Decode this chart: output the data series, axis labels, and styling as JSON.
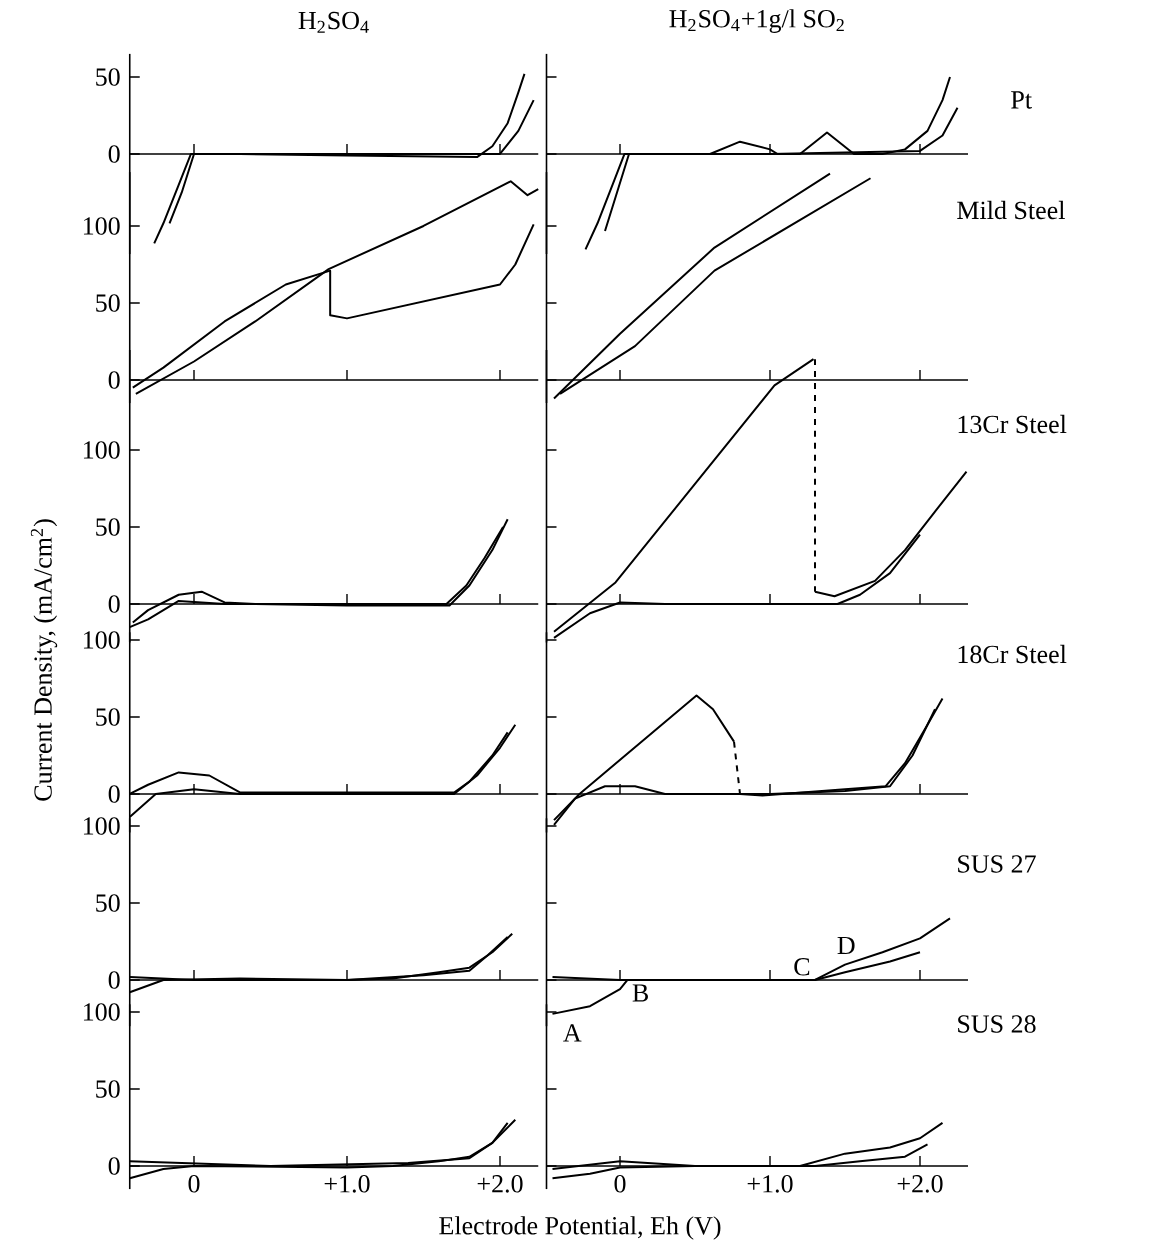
{
  "chart_data": [
    {
      "type": "line",
      "title": "H$_{2}$SO$_{4}$",
      "xlim": [
        -0.42,
        2.25
      ],
      "ylim": [
        -65,
        65
      ],
      "xticks": [
        {
          "value": 0,
          "label": null
        },
        {
          "value": 1,
          "label": null
        },
        {
          "value": 2,
          "label": null
        }
      ],
      "yticks": [
        0,
        50
      ],
      "tick_labels": "y",
      "series": [
        {
          "color": "#000000",
          "x": [
            -0.26,
            -0.2,
            -0.1,
            -0.02,
            0.3,
            1.0,
            1.85,
            1.95,
            2.05,
            2.12,
            2.16
          ],
          "values": [
            -58,
            -45,
            -20,
            0,
            0,
            -1,
            -2,
            5,
            20,
            40,
            52
          ]
        },
        {
          "color": "#000000",
          "x": [
            2.22,
            2.12,
            2.0,
            1.0,
            0.0,
            -0.08,
            -0.16
          ],
          "values": [
            35,
            15,
            0,
            0,
            0,
            -25,
            -45
          ]
        }
      ]
    },
    {
      "type": "line",
      "title": "H$_{2}$SO$_{4}$+1g/l SO$_{2}$",
      "xlim": [
        -0.49,
        2.32
      ],
      "ylim": [
        -65,
        65
      ],
      "xticks": [
        {
          "value": 0,
          "label": null
        },
        {
          "value": 1,
          "label": null
        },
        {
          "value": 2,
          "label": null
        }
      ],
      "yticks": [
        0,
        50
      ],
      "tick_labels": false,
      "annotations": [
        "Pt"
      ],
      "series": [
        {
          "color": "#000000",
          "x": [
            -0.23,
            -0.15,
            -0.05,
            0.03,
            0.6,
            0.8,
            1.0,
            1.05,
            1.2,
            1.38,
            1.56,
            1.75,
            1.9,
            2.05,
            2.15,
            2.2
          ],
          "values": [
            -62,
            -45,
            -20,
            0,
            0,
            8,
            3,
            0,
            0,
            14,
            0,
            0,
            3,
            15,
            35,
            50
          ]
        },
        {
          "color": "#000000",
          "x": [
            2.25,
            2.15,
            2.0,
            1.0,
            0.06,
            -0.02,
            -0.1
          ],
          "values": [
            30,
            12,
            2,
            0,
            0,
            -25,
            -50
          ]
        }
      ]
    },
    {
      "type": "line",
      "xlim": [
        -0.42,
        2.25
      ],
      "ylim": [
        -15,
        135
      ],
      "xticks": [
        {
          "value": 0,
          "label": null
        },
        {
          "value": 1,
          "label": null
        },
        {
          "value": 2,
          "label": null
        }
      ],
      "yticks": [
        0,
        50,
        100
      ],
      "tick_labels": "y",
      "series": [
        {
          "color": "#000000",
          "x": [
            -0.38,
            0.0,
            0.4,
            0.88,
            1.5,
            2.07,
            2.18,
            2.25
          ],
          "values": [
            -9,
            12,
            38,
            72,
            100,
            129,
            120,
            124
          ]
        },
        {
          "color": "#000000",
          "x": [
            2.22,
            2.1,
            2.0,
            1.5,
            1.0,
            0.89,
            0.89,
            0.6,
            0.2,
            -0.2,
            -0.4
          ],
          "values": [
            101,
            75,
            62,
            51,
            40,
            42,
            71,
            62,
            38,
            8,
            -5
          ]
        }
      ]
    },
    {
      "type": "line",
      "xlim": [
        -0.49,
        2.32
      ],
      "ylim": [
        -15,
        135
      ],
      "xticks": [
        {
          "value": 0,
          "label": null
        },
        {
          "value": 1,
          "label": null
        },
        {
          "value": 2,
          "label": null
        }
      ],
      "yticks": [
        0,
        50,
        100
      ],
      "tick_labels": false,
      "annotations": [
        "Mild Steel"
      ],
      "series": [
        {
          "color": "#000000",
          "x": [
            -0.4,
            0.1,
            0.63,
            1.67
          ],
          "values": [
            -9,
            22,
            71,
            131
          ]
        },
        {
          "color": "#000000",
          "x": [
            1.4,
            0.63,
            0.0,
            -0.44
          ],
          "values": [
            134,
            86,
            30,
            -12
          ]
        }
      ]
    },
    {
      "type": "line",
      "xlim": [
        -0.42,
        2.25
      ],
      "ylim": [
        -25,
        165
      ],
      "xticks": [
        {
          "value": 0,
          "label": null
        },
        {
          "value": 1,
          "label": null
        },
        {
          "value": 2,
          "label": null
        }
      ],
      "yticks": [
        0,
        50,
        100
      ],
      "tick_labels": "y",
      "series": [
        {
          "color": "#000000",
          "x": [
            -0.4,
            -0.3,
            -0.1,
            0.05,
            0.2,
            0.4,
            1.0,
            1.67,
            1.8,
            1.95,
            2.05
          ],
          "values": [
            -12,
            -4,
            6,
            8,
            1,
            0,
            -1,
            -1,
            12,
            35,
            55
          ]
        },
        {
          "color": "#000000",
          "x": [
            2.02,
            1.9,
            1.78,
            1.65,
            1.0,
            0.2,
            -0.1,
            -0.3,
            -0.42
          ],
          "values": [
            50,
            30,
            12,
            0,
            0,
            0,
            2,
            -10,
            -15
          ]
        }
      ]
    },
    {
      "type": "line",
      "xlim": [
        -0.49,
        2.32
      ],
      "ylim": [
        -25,
        165
      ],
      "xticks": [
        {
          "value": 0,
          "label": null
        },
        {
          "value": 1,
          "label": null
        },
        {
          "value": 2,
          "label": null
        }
      ],
      "yticks": [
        0,
        50,
        100
      ],
      "tick_labels": false,
      "annotations": [
        "13Cr Steel"
      ],
      "series": [
        {
          "color": "#000000",
          "x": [
            -0.44,
            -0.03,
            1.03,
            1.29
          ],
          "values": [
            -18,
            14,
            142,
            159
          ]
        },
        {
          "color": "#000000",
          "line_style": "dashed",
          "x": [
            1.3,
            1.3
          ],
          "values": [
            159,
            8
          ]
        },
        {
          "color": "#000000",
          "x": [
            1.3,
            1.43,
            1.7,
            1.9,
            2.1,
            2.31
          ],
          "values": [
            8,
            5,
            15,
            35,
            60,
            86
          ]
        },
        {
          "color": "#000000",
          "x": [
            2.0,
            1.8,
            1.6,
            1.45,
            1.0,
            0.3,
            0.0,
            -0.2,
            -0.44
          ],
          "values": [
            45,
            20,
            6,
            0,
            0,
            0,
            1,
            -6,
            -22
          ]
        }
      ]
    },
    {
      "type": "line",
      "ylabel": "Current Density, (mA/cm$^{2}$)",
      "xlim": [
        -0.42,
        2.25
      ],
      "ylim": [
        -25,
        105
      ],
      "xticks": [
        {
          "value": 0,
          "label": null
        },
        {
          "value": 1,
          "label": null
        },
        {
          "value": 2,
          "label": null
        }
      ],
      "yticks": [
        0,
        50,
        100
      ],
      "tick_labels": "y",
      "series": [
        {
          "color": "#000000",
          "x": [
            -0.42,
            -0.25,
            0.0,
            0.3,
            1.0,
            1.7,
            1.85,
            2.0,
            2.1
          ],
          "values": [
            -15,
            0,
            3,
            0,
            0,
            0,
            12,
            30,
            45
          ]
        },
        {
          "color": "#000000",
          "x": [
            2.05,
            1.95,
            1.8,
            1.7,
            1.0,
            0.3,
            0.1,
            -0.1,
            -0.3,
            -0.42
          ],
          "values": [
            40,
            25,
            8,
            1,
            1,
            1,
            12,
            14,
            6,
            0
          ]
        }
      ]
    },
    {
      "type": "line",
      "xlim": [
        -0.49,
        2.32
      ],
      "ylim": [
        -25,
        105
      ],
      "xticks": [
        {
          "value": 0,
          "label": null
        },
        {
          "value": 1,
          "label": null
        },
        {
          "value": 2,
          "label": null
        }
      ],
      "yticks": [
        0,
        50,
        100
      ],
      "tick_labels": false,
      "annotations": [
        "18Cr Steel"
      ],
      "series": [
        {
          "color": "#000000",
          "x": [
            -0.44,
            -0.27,
            0.51,
            0.62,
            0.72,
            0.76
          ],
          "values": [
            -17,
            0,
            64,
            55,
            40,
            34
          ]
        },
        {
          "color": "#000000",
          "line_style": "dashed",
          "x": [
            0.76,
            0.8
          ],
          "values": [
            34,
            0
          ]
        },
        {
          "color": "#000000",
          "x": [
            0.8,
            0.95,
            1.5,
            1.77,
            1.9,
            2.05,
            2.15
          ],
          "values": [
            0,
            -1,
            3,
            5,
            20,
            45,
            62
          ]
        },
        {
          "color": "#000000",
          "x": [
            2.1,
            1.95,
            1.8,
            1.5,
            1.0,
            0.3,
            0.1,
            -0.1,
            -0.3,
            -0.44
          ],
          "values": [
            55,
            25,
            5,
            2,
            0,
            0,
            5,
            5,
            -3,
            -20
          ]
        }
      ]
    },
    {
      "type": "line",
      "xlim": [
        -0.42,
        2.25
      ],
      "ylim": [
        -30,
        105
      ],
      "xticks": [
        {
          "value": 0,
          "label": null
        },
        {
          "value": 1,
          "label": null
        },
        {
          "value": 2,
          "label": null
        }
      ],
      "yticks": [
        0,
        50,
        100
      ],
      "tick_labels": "y",
      "series": [
        {
          "color": "#000000",
          "x": [
            -0.42,
            -0.2,
            0.3,
            1.0,
            1.3,
            1.6,
            1.8,
            1.95,
            2.08
          ],
          "values": [
            -8,
            0,
            1,
            0,
            1,
            5,
            8,
            18,
            30
          ]
        },
        {
          "color": "#000000",
          "x": [
            2.05,
            1.92,
            1.8,
            1.5,
            1.0,
            0.0,
            -0.42
          ],
          "values": [
            28,
            16,
            6,
            3,
            0,
            0,
            2
          ]
        }
      ]
    },
    {
      "type": "line",
      "xlim": [
        -0.49,
        2.32
      ],
      "ylim": [
        -30,
        105
      ],
      "xticks": [
        {
          "value": 0,
          "label": null
        },
        {
          "value": 1,
          "label": null
        },
        {
          "value": 2,
          "label": null
        }
      ],
      "yticks": [
        0,
        50,
        100
      ],
      "tick_labels": false,
      "annotations": [
        "SUS 27",
        {
          "text": "A",
          "x": -0.45,
          "y": -22
        },
        {
          "text": "B",
          "x": 0.05,
          "y": 0
        },
        {
          "text": "C",
          "x": 1.3,
          "y": 0
        },
        {
          "text": "D",
          "x": 1.6,
          "y": 14
        }
      ],
      "series": [
        {
          "color": "#000000",
          "x": [
            -0.45,
            -0.2,
            0.0,
            0.05,
            1.0,
            1.3,
            1.5,
            1.75,
            2.0,
            2.2
          ],
          "values": [
            -22,
            -17,
            -6,
            0,
            0,
            0,
            10,
            18,
            27,
            40
          ]
        },
        {
          "color": "#000000",
          "x": [
            2.0,
            1.8,
            1.5,
            1.3,
            0.0,
            -0.45
          ],
          "values": [
            18,
            12,
            5,
            0,
            0,
            2
          ]
        }
      ]
    },
    {
      "type": "line",
      "xlabel": "Electrode Potential, Eh (V)",
      "xlim": [
        -0.42,
        2.25
      ],
      "ylim": [
        -15,
        105
      ],
      "xticks": [
        {
          "value": 0,
          "label": "0"
        },
        {
          "value": 1,
          "label": "+1.0"
        },
        {
          "value": 2,
          "label": "+2.0"
        }
      ],
      "yticks": [
        0,
        50,
        100
      ],
      "series": [
        {
          "color": "#000000",
          "x": [
            -0.42,
            -0.2,
            0.0,
            1.0,
            1.3,
            1.6,
            1.8,
            1.95,
            2.1
          ],
          "values": [
            -8,
            -2,
            0,
            -1,
            0,
            3,
            6,
            15,
            30
          ]
        },
        {
          "color": "#000000",
          "x": [
            2.05,
            1.95,
            1.8,
            1.4,
            0.5,
            -0.42
          ],
          "values": [
            28,
            15,
            5,
            2,
            0,
            3
          ]
        }
      ]
    },
    {
      "type": "line",
      "xlim": [
        -0.49,
        2.32
      ],
      "ylim": [
        -15,
        105
      ],
      "xticks": [
        {
          "value": 0,
          "label": "0"
        },
        {
          "value": 1,
          "label": "+1.0"
        },
        {
          "value": 2,
          "label": "+2.0"
        }
      ],
      "yticks": [
        0,
        50,
        100
      ],
      "tick_labels": "x",
      "annotations": [
        "SUS 28"
      ],
      "series": [
        {
          "color": "#000000",
          "x": [
            -0.45,
            -0.2,
            0.0,
            0.5,
            1.2,
            1.5,
            1.8,
            2.0,
            2.15
          ],
          "values": [
            -8,
            -5,
            -1,
            0,
            0,
            8,
            12,
            18,
            28
          ]
        },
        {
          "color": "#000000",
          "x": [
            2.05,
            1.9,
            1.6,
            1.3,
            0.5,
            0.0,
            -0.45
          ],
          "values": [
            14,
            6,
            3,
            0,
            0,
            3,
            -2
          ]
        }
      ]
    }
  ]
}
